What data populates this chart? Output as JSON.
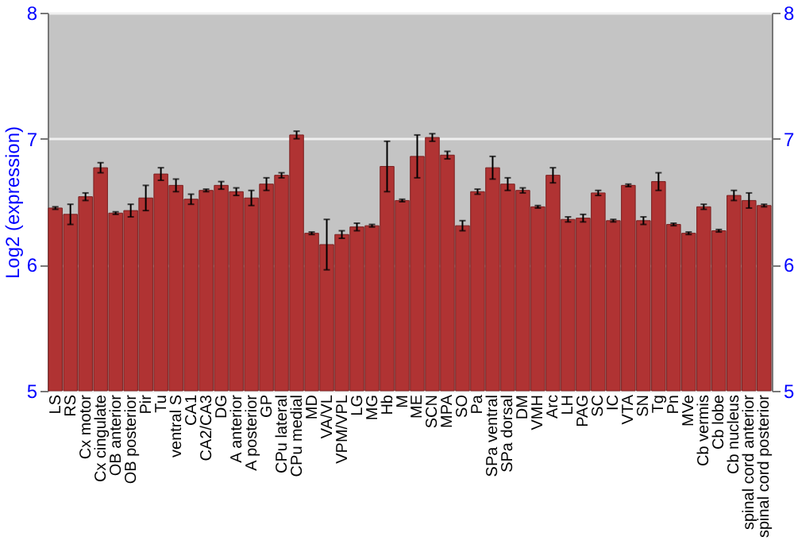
{
  "chart_data": {
    "type": "bar",
    "ylabel": "Log2 (expression)",
    "categories": [
      "LS",
      "RS",
      "Cx motor",
      "Cx cingulate",
      "OB anterior",
      "OB posterior",
      "Pir",
      "Tu",
      "ventral S",
      "CA1",
      "CA2/CA3",
      "DG",
      "A anterior",
      "A posterior",
      "GP",
      "CPu lateral",
      "CPu medial",
      "MD",
      "VA/VL",
      "VPM/VPL",
      "LG",
      "MG",
      "Hb",
      "M",
      "ME",
      "SCN",
      "MPA",
      "SO",
      "Pa",
      "SPa ventral",
      "SPa dorsal",
      "DM",
      "VMH",
      "Arc",
      "LH",
      "PAG",
      "SC",
      "IC",
      "VTA",
      "SN",
      "Tg",
      "Pn",
      "MVe",
      "Cb vermis",
      "Cb lobe",
      "Cb nucleus",
      "spinal cord anterior",
      "spinal cord posterior"
    ],
    "values": [
      6.45,
      6.4,
      6.54,
      6.77,
      6.41,
      6.43,
      6.53,
      6.72,
      6.63,
      6.52,
      6.59,
      6.63,
      6.58,
      6.53,
      6.64,
      6.71,
      7.03,
      6.25,
      6.16,
      6.24,
      6.3,
      6.31,
      6.78,
      6.51,
      6.86,
      7.01,
      6.87,
      6.31,
      6.58,
      6.77,
      6.64,
      6.59,
      6.46,
      6.71,
      6.36,
      6.37,
      6.57,
      6.35,
      6.63,
      6.35,
      6.66,
      6.32,
      6.25,
      6.46,
      6.27,
      6.55,
      6.51,
      6.47
    ],
    "errors": [
      0.01,
      0.08,
      0.03,
      0.04,
      0.01,
      0.05,
      0.1,
      0.05,
      0.05,
      0.04,
      0.01,
      0.03,
      0.03,
      0.06,
      0.05,
      0.02,
      0.03,
      0.01,
      0.2,
      0.03,
      0.03,
      0.01,
      0.2,
      0.01,
      0.17,
      0.03,
      0.03,
      0.04,
      0.02,
      0.09,
      0.05,
      0.02,
      0.01,
      0.06,
      0.02,
      0.03,
      0.02,
      0.01,
      0.01,
      0.03,
      0.07,
      0.01,
      0.01,
      0.02,
      0.01,
      0.04,
      0.06,
      0.01
    ],
    "color": "#b03333",
    "ylim": [
      5,
      8
    ],
    "yticks": [
      5,
      6,
      7,
      8
    ],
    "y2lim": [
      5,
      8
    ],
    "y2ticks": [
      5,
      6,
      7,
      8
    ],
    "grid": "y"
  }
}
